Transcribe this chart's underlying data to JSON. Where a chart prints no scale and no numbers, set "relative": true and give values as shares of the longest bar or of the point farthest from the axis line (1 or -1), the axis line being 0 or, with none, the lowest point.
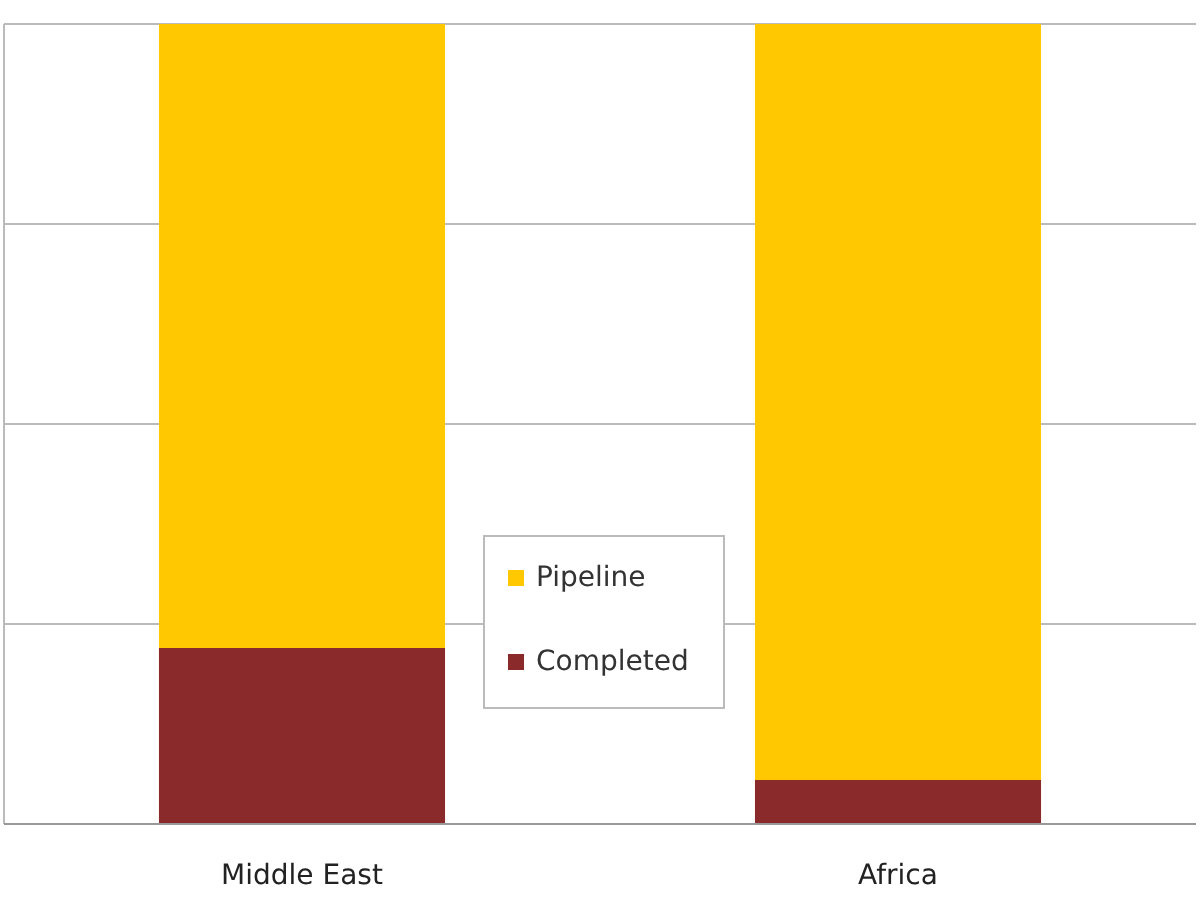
{
  "chart_data": {
    "type": "bar",
    "stacked": true,
    "relative": true,
    "grid": true,
    "legend": "bottom",
    "categories": [
      "Middle East",
      "Africa"
    ],
    "series": [
      {
        "name": "Completed",
        "color": "#8b2a2a",
        "values": [
          0.22,
          0.055
        ]
      },
      {
        "name": "Pipeline",
        "color": "#ffc800",
        "values": [
          0.78,
          0.945
        ]
      }
    ]
  }
}
